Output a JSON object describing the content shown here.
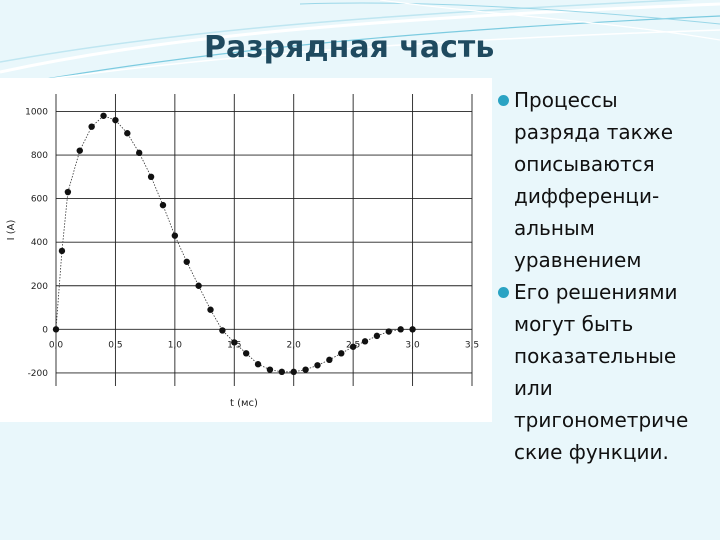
{
  "slide": {
    "title": "Разрядная часть",
    "accent_color": "#2aa3c3",
    "title_color": "#1f4a5f",
    "bullets": [
      {
        "lines": [
          "Процессы",
          "разряда также",
          "описываются",
          "дифференци-",
          "альным",
          "уравнением"
        ]
      },
      {
        "lines": [
          "Его решениями",
          "могут быть",
          "показательные",
          "или",
          "тригонометриче",
          "ские функции."
        ]
      }
    ]
  },
  "chart_data": {
    "type": "scatter",
    "connected": true,
    "xlabel": "t (мс)",
    "ylabel": "I (A)",
    "xlim": [
      0,
      3.5
    ],
    "ylim": [
      -260,
      1080
    ],
    "x_ticks": [
      "0,0",
      "0,5",
      "1,0",
      "1,5",
      "2,0",
      "2,5",
      "3,0",
      "3,5"
    ],
    "y_ticks": [
      "-200",
      "0",
      "200",
      "400",
      "600",
      "800",
      "1000"
    ],
    "grid": true,
    "series": [
      {
        "x": [
          0.0,
          0.05,
          0.1,
          0.2,
          0.3,
          0.4,
          0.5,
          0.6,
          0.7,
          0.8,
          0.9,
          1.0,
          1.1,
          1.2,
          1.3,
          1.4,
          1.5,
          1.6,
          1.7,
          1.8,
          1.9,
          2.0,
          2.1,
          2.2,
          2.3,
          2.4,
          2.5,
          2.6,
          2.7,
          2.8,
          2.9,
          3.0
        ],
        "y": [
          0,
          360,
          630,
          820,
          930,
          980,
          960,
          900,
          810,
          700,
          570,
          430,
          310,
          200,
          90,
          -5,
          -60,
          -110,
          -160,
          -185,
          -195,
          -195,
          -185,
          -165,
          -140,
          -110,
          -80,
          -55,
          -30,
          -10,
          0,
          0
        ]
      }
    ]
  }
}
